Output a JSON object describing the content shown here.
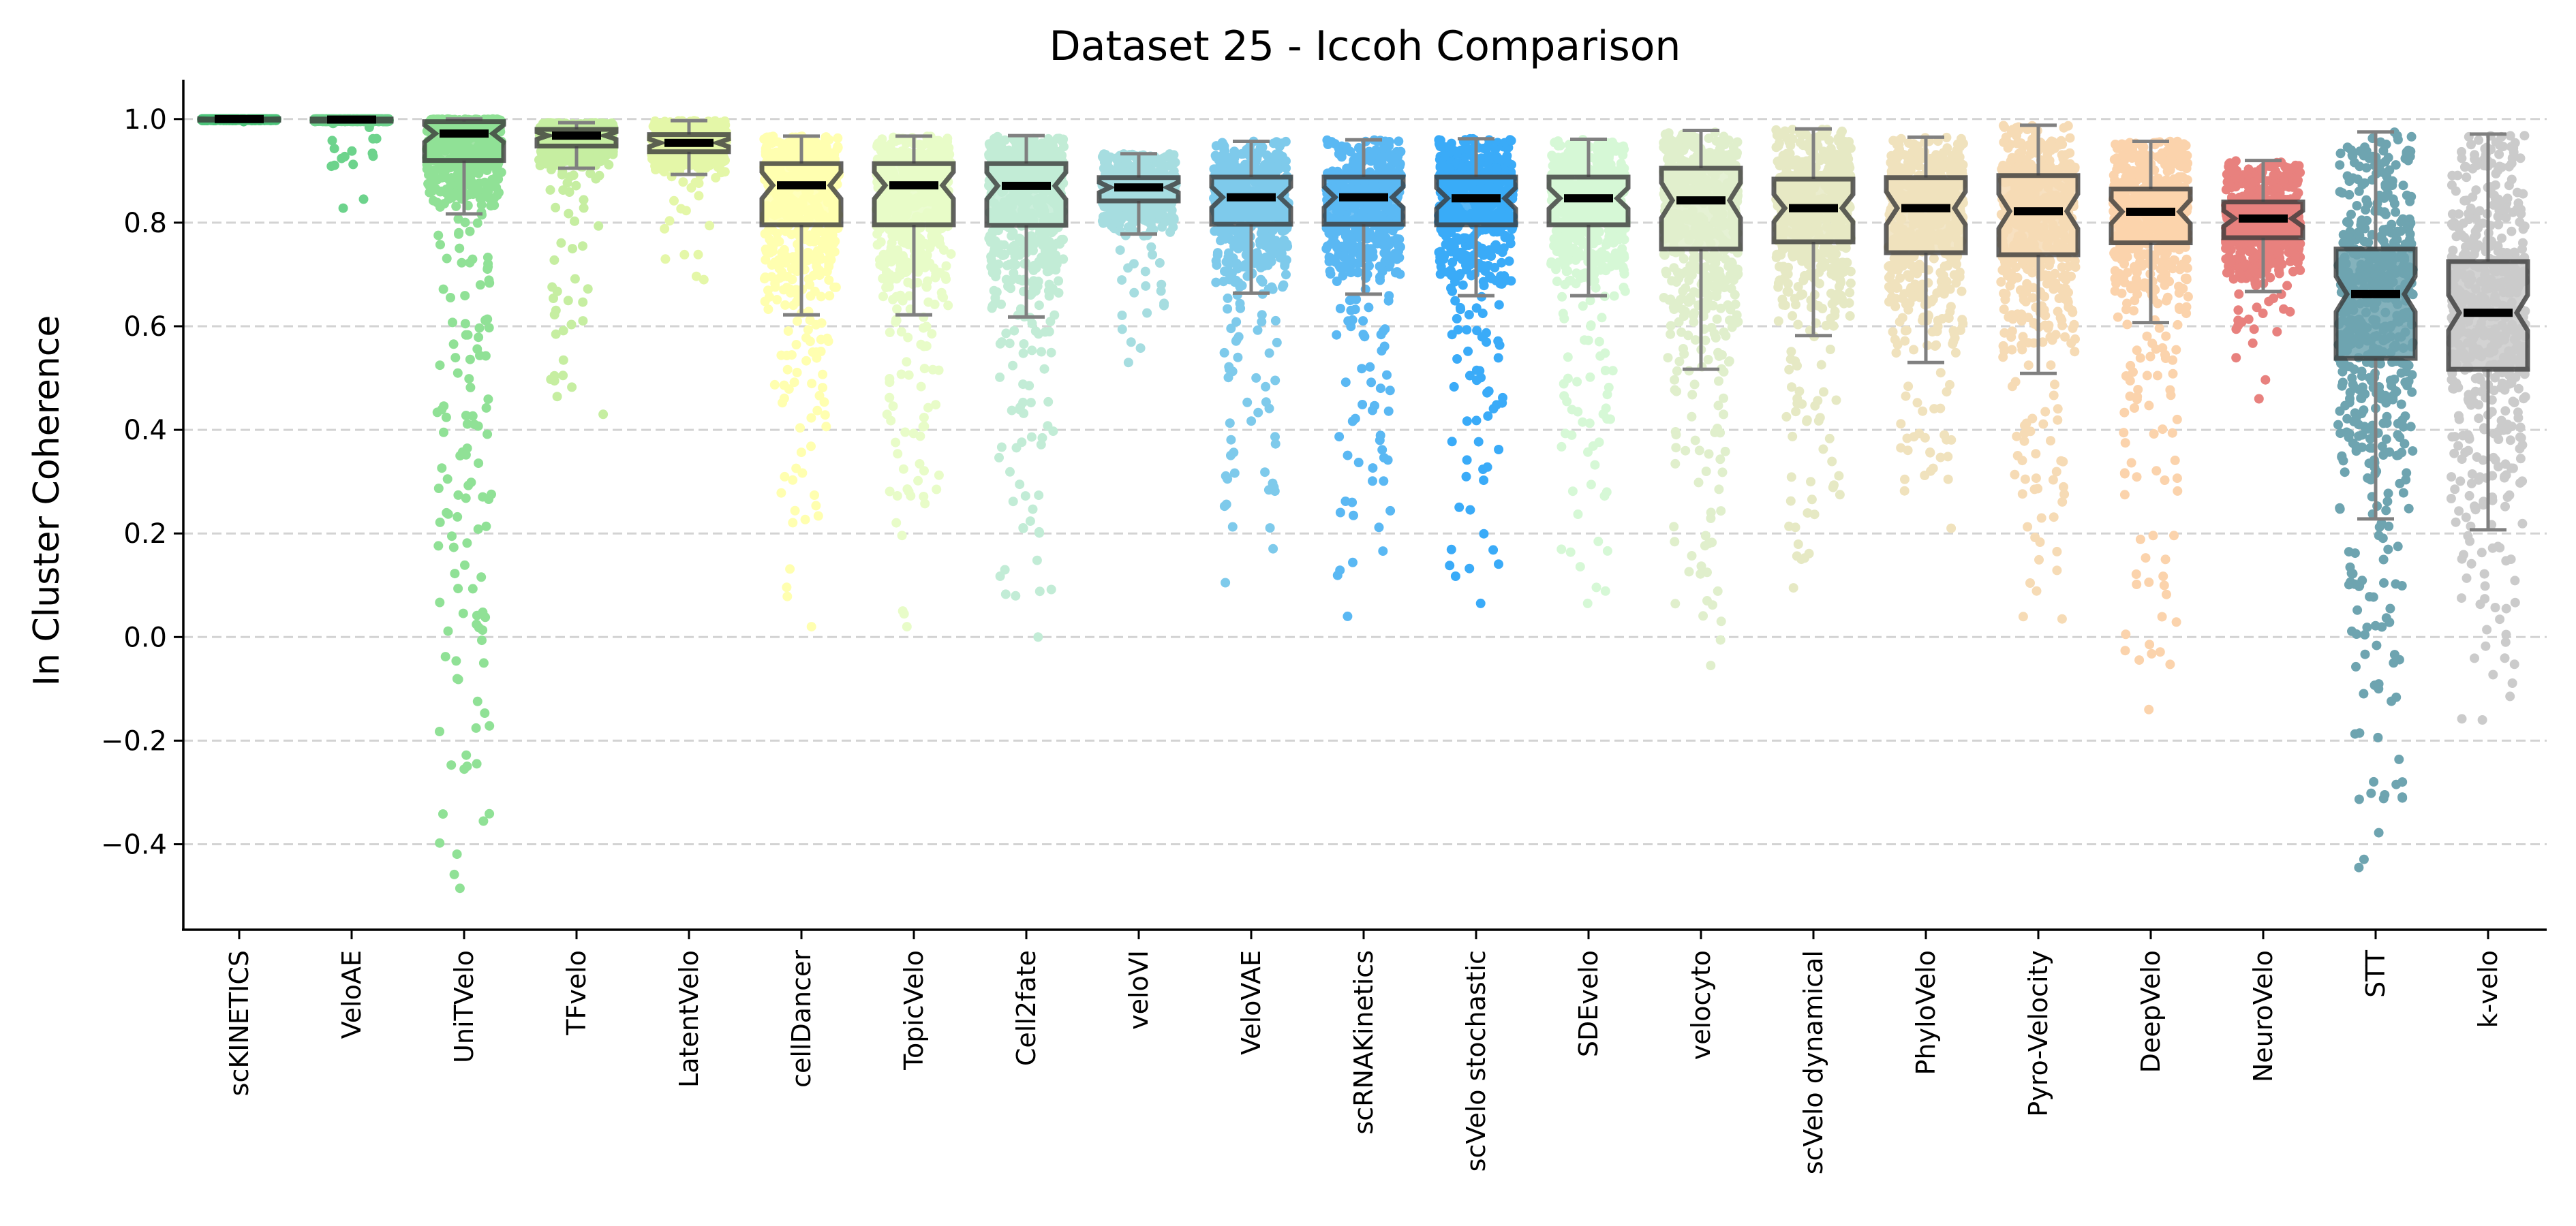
{
  "chart_data": {
    "type": "box",
    "subtype": "notched boxplot with jittered strip points",
    "title": "Dataset 25 - Iccoh Comparison",
    "xlabel": "",
    "ylabel": "In Cluster Coherence",
    "ylim": [
      -0.565,
      1.076
    ],
    "yticks": [
      -0.4,
      -0.2,
      0.0,
      0.2,
      0.4,
      0.6,
      0.8,
      1.0
    ],
    "ytick_labels": [
      "−0.4",
      "−0.2",
      "0.0",
      "0.2",
      "0.4",
      "0.6",
      "0.8",
      "1.0"
    ],
    "grid": "horizontal dashed",
    "legend": "none",
    "x_tick_rotation": 90,
    "categories": [
      "scKINETICS",
      "VeloAE",
      "UniTVelo",
      "TFvelo",
      "LatentVelo",
      "cellDancer",
      "TopicVelo",
      "Cell2fate",
      "veloVI",
      "VeloVAE",
      "scRNAKinetics",
      "scVelo stochastic",
      "SDEvelo",
      "velocyto",
      "scVelo dynamical",
      "PhyloVelo",
      "Pyro-Velocity",
      "DeepVelo",
      "NeuroVelo",
      "STT",
      "k-velo"
    ],
    "series": [
      {
        "name": "scKINETICS",
        "color": "#4cc47a",
        "whisker_low": 0.997,
        "q1": 0.998,
        "median": 1.0,
        "q3": 1.0,
        "whisker_high": 1.0,
        "min_point": 0.995,
        "max_point": 1.0
      },
      {
        "name": "VeloAE",
        "color": "#6dd38c",
        "whisker_low": 0.995,
        "q1": 0.996,
        "median": 0.999,
        "q3": 1.0,
        "whisker_high": 1.0,
        "min_point": 0.828,
        "max_point": 1.0
      },
      {
        "name": "UniTVelo",
        "color": "#90e196",
        "whisker_low": 0.817,
        "q1": 0.92,
        "median": 0.972,
        "q3": 0.995,
        "whisker_high": 1.0,
        "min_point": -0.485,
        "max_point": 1.0
      },
      {
        "name": "TFvelo",
        "color": "#c6eea1",
        "whisker_low": 0.905,
        "q1": 0.948,
        "median": 0.968,
        "q3": 0.98,
        "whisker_high": 0.993,
        "min_point": 0.43,
        "max_point": 1.0
      },
      {
        "name": "LatentVelo",
        "color": "#e4f7a8",
        "whisker_low": 0.893,
        "q1": 0.937,
        "median": 0.954,
        "q3": 0.97,
        "whisker_high": 0.997,
        "min_point": 0.69,
        "max_point": 1.0
      },
      {
        "name": "cellDancer",
        "color": "#ffffb0",
        "whisker_low": 0.622,
        "q1": 0.796,
        "median": 0.872,
        "q3": 0.914,
        "whisker_high": 0.967,
        "min_point": 0.02,
        "max_point": 0.967
      },
      {
        "name": "TopicVelo",
        "color": "#e8fcc8",
        "whisker_low": 0.622,
        "q1": 0.796,
        "median": 0.872,
        "q3": 0.914,
        "whisker_high": 0.967,
        "min_point": 0.02,
        "max_point": 0.967
      },
      {
        "name": "Cell2fate",
        "color": "#c2ecd6",
        "whisker_low": 0.618,
        "q1": 0.795,
        "median": 0.871,
        "q3": 0.914,
        "whisker_high": 0.968,
        "min_point": 0.0,
        "max_point": 0.968
      },
      {
        "name": "veloVI",
        "color": "#a6dde0",
        "whisker_low": 0.778,
        "q1": 0.842,
        "median": 0.868,
        "q3": 0.887,
        "whisker_high": 0.933,
        "min_point": 0.53,
        "max_point": 0.935
      },
      {
        "name": "VeloVAE",
        "color": "#7ecaeb",
        "whisker_low": 0.664,
        "q1": 0.797,
        "median": 0.849,
        "q3": 0.888,
        "whisker_high": 0.957,
        "min_point": 0.105,
        "max_point": 0.957
      },
      {
        "name": "scRNAKinetics",
        "color": "#5ab8f3",
        "whisker_low": 0.662,
        "q1": 0.797,
        "median": 0.849,
        "q3": 0.888,
        "whisker_high": 0.96,
        "min_point": 0.04,
        "max_point": 0.96
      },
      {
        "name": "scVelo stochastic",
        "color": "#3aabf8",
        "whisker_low": 0.659,
        "q1": 0.796,
        "median": 0.847,
        "q3": 0.888,
        "whisker_high": 0.962,
        "min_point": 0.065,
        "max_point": 0.962
      },
      {
        "name": "SDEvelo",
        "color": "#d6f8d6",
        "whisker_low": 0.659,
        "q1": 0.796,
        "median": 0.847,
        "q3": 0.888,
        "whisker_high": 0.961,
        "min_point": 0.065,
        "max_point": 0.961
      },
      {
        "name": "velocyto",
        "color": "#e0efcc",
        "whisker_low": 0.517,
        "q1": 0.749,
        "median": 0.843,
        "q3": 0.905,
        "whisker_high": 0.978,
        "min_point": -0.055,
        "max_point": 0.978
      },
      {
        "name": "scVelo dynamical",
        "color": "#e6e9c4",
        "whisker_low": 0.582,
        "q1": 0.763,
        "median": 0.828,
        "q3": 0.884,
        "whisker_high": 0.981,
        "min_point": 0.095,
        "max_point": 0.981
      },
      {
        "name": "PhyloVelo",
        "color": "#f0e2bd",
        "whisker_low": 0.53,
        "q1": 0.742,
        "median": 0.828,
        "q3": 0.887,
        "whisker_high": 0.965,
        "min_point": 0.21,
        "max_point": 0.965
      },
      {
        "name": "Pyro-Velocity",
        "color": "#f6dbb5",
        "whisker_low": 0.509,
        "q1": 0.738,
        "median": 0.822,
        "q3": 0.891,
        "whisker_high": 0.988,
        "min_point": 0.035,
        "max_point": 0.988
      },
      {
        "name": "DeepVelo",
        "color": "#fbd3ac",
        "whisker_low": 0.607,
        "q1": 0.761,
        "median": 0.821,
        "q3": 0.865,
        "whisker_high": 0.957,
        "min_point": -0.14,
        "max_point": 0.957
      },
      {
        "name": "NeuroVelo",
        "color": "#e8817e",
        "whisker_low": 0.667,
        "q1": 0.771,
        "median": 0.808,
        "q3": 0.84,
        "whisker_high": 0.92,
        "min_point": 0.46,
        "max_point": 0.92
      },
      {
        "name": "STT",
        "color": "#6ea4b0",
        "whisker_low": 0.228,
        "q1": 0.538,
        "median": 0.662,
        "q3": 0.749,
        "whisker_high": 0.975,
        "min_point": -0.445,
        "max_point": 0.975
      },
      {
        "name": "k-velo",
        "color": "#cbcbcb",
        "whisker_low": 0.207,
        "q1": 0.517,
        "median": 0.626,
        "q3": 0.725,
        "whisker_high": 0.971,
        "min_point": -0.16,
        "max_point": 0.971
      }
    ]
  }
}
